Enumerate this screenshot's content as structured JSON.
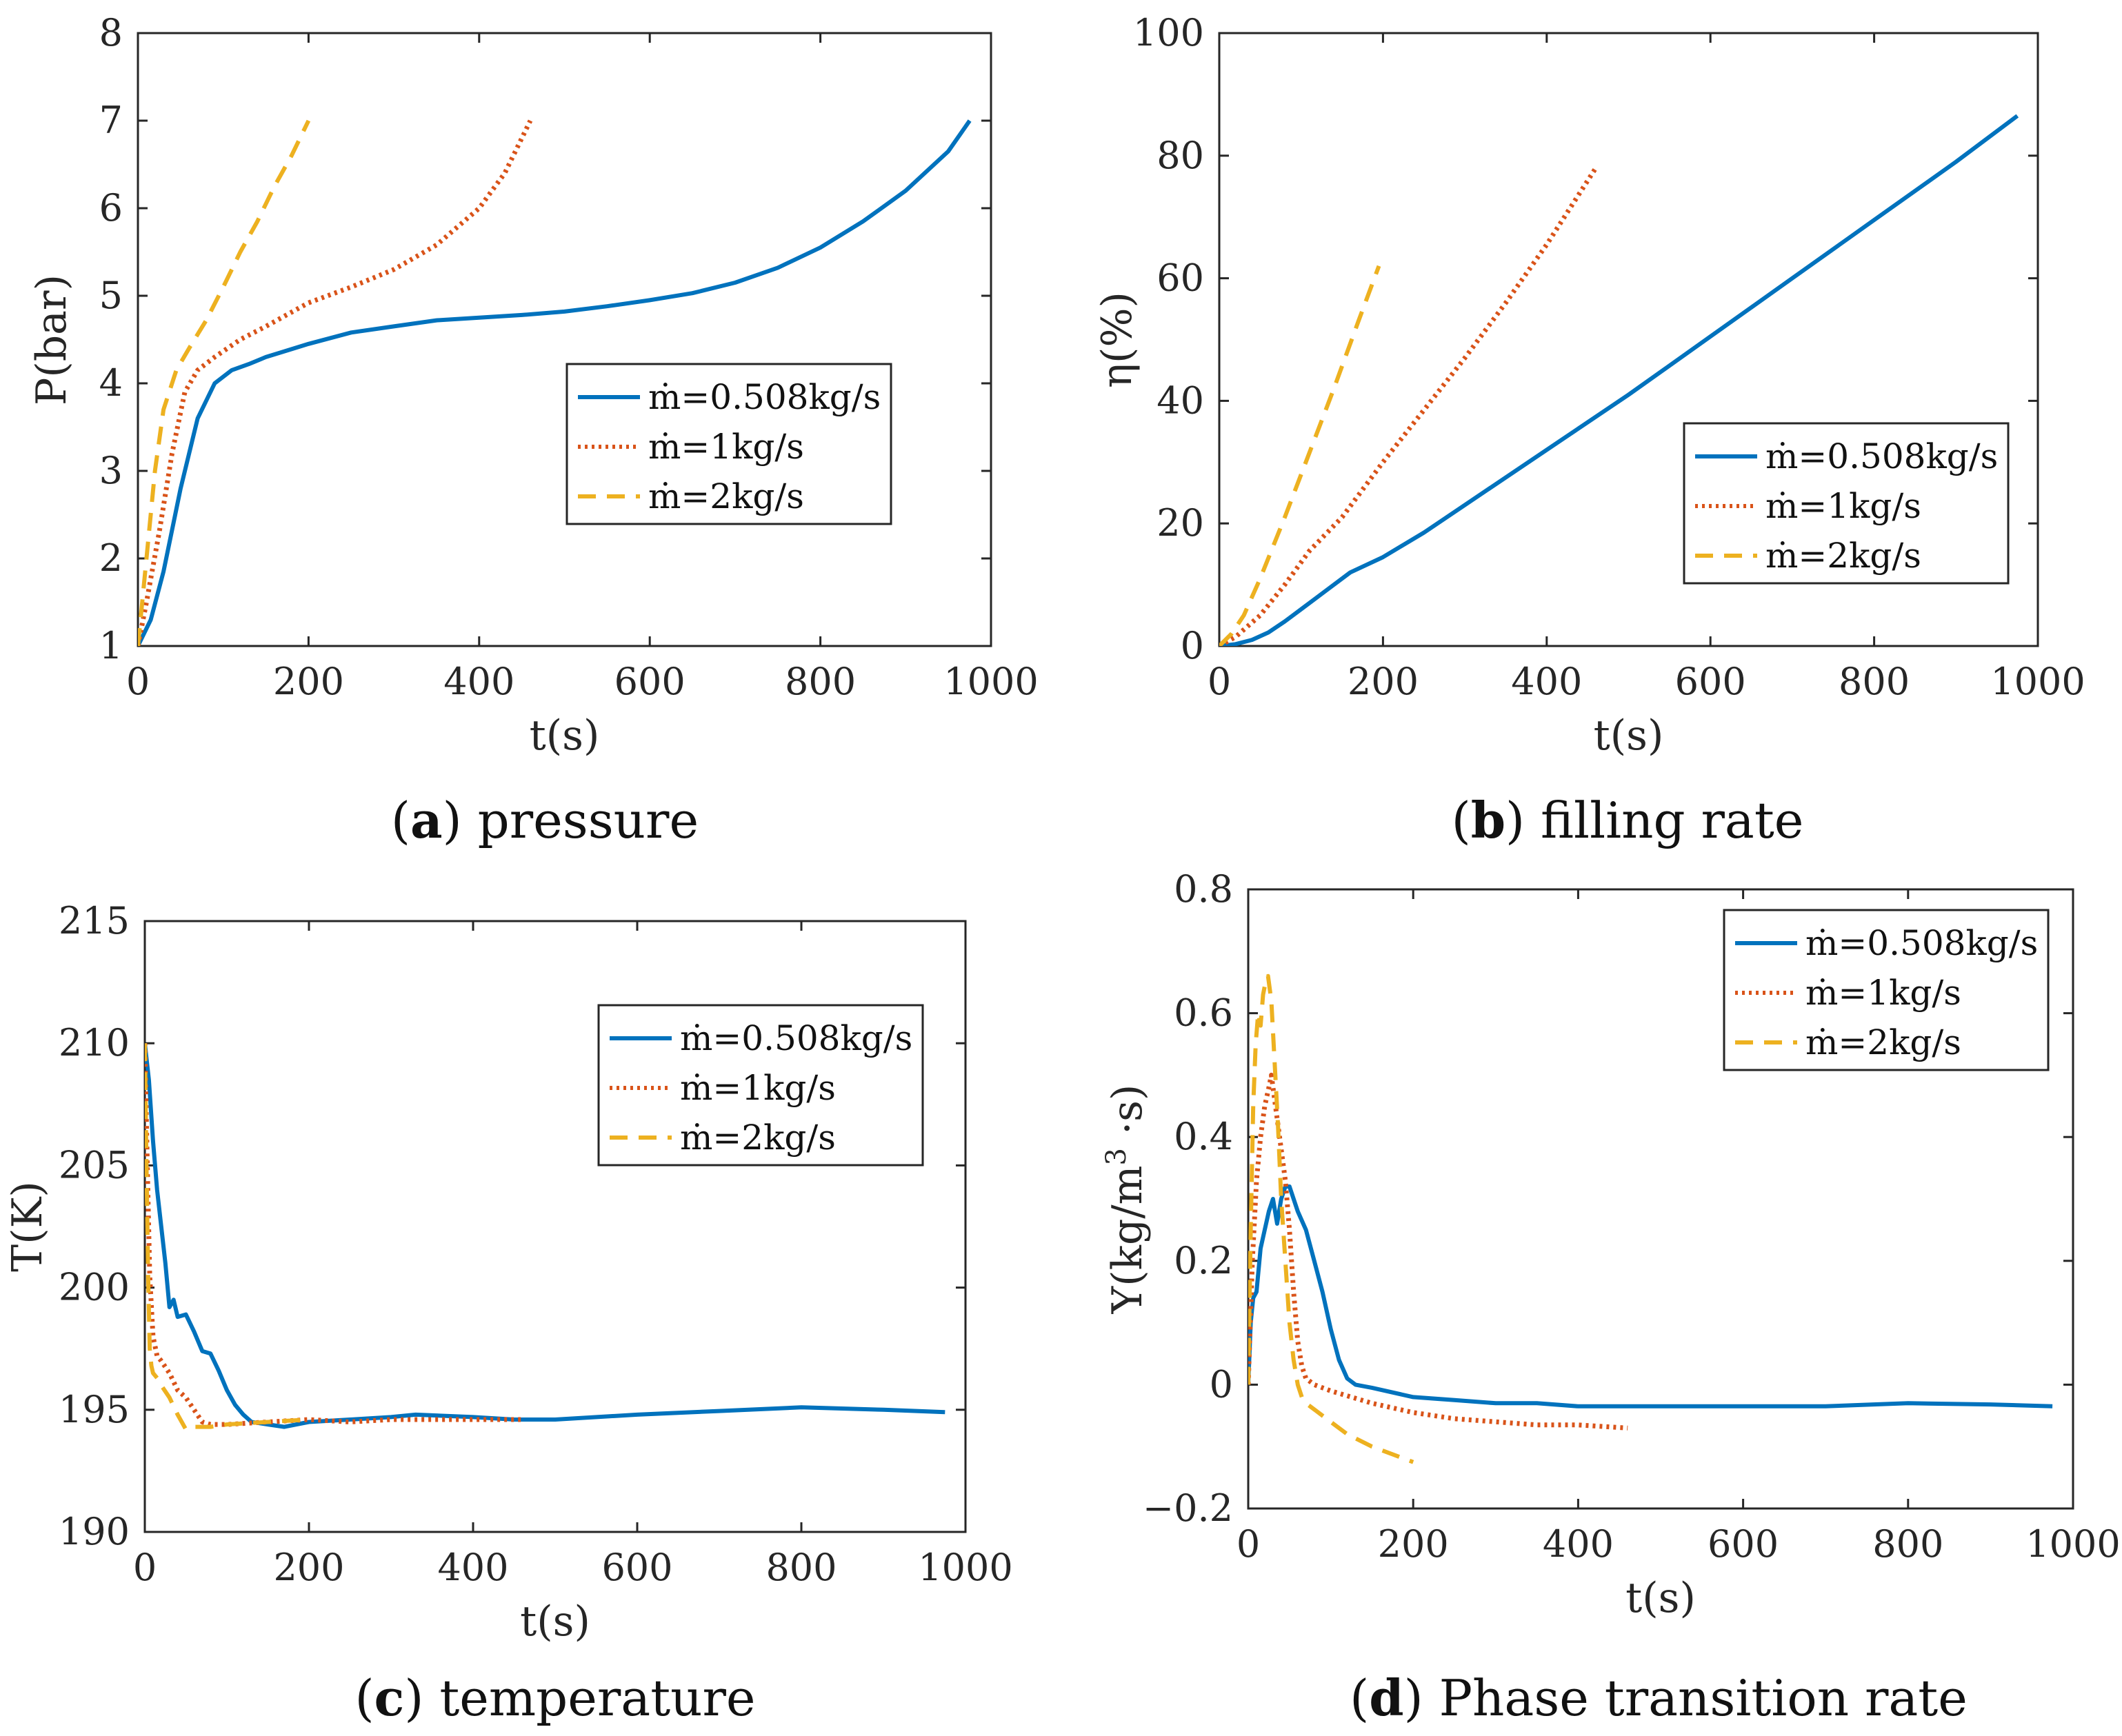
{
  "colors": {
    "s1": "#0072BD",
    "s2": "#D95319",
    "s3": "#EDB120"
  },
  "legend_entries": [
    "ṁ=0.508kg/s",
    "ṁ=1kg/s",
    "ṁ=2kg/s"
  ],
  "chart_data": [
    {
      "id": "a",
      "type": "line",
      "caption_letter": "a",
      "caption_text": " pressure",
      "xlabel": "t(s)",
      "ylabel": "P(bar)",
      "xlim": [
        0,
        1000
      ],
      "ylim": [
        1,
        8
      ],
      "xticks": [
        0,
        200,
        400,
        600,
        800,
        1000
      ],
      "yticks": [
        1,
        2,
        3,
        4,
        5,
        6,
        7,
        8
      ],
      "legend_position": "center-right",
      "series": [
        {
          "name": "ṁ=0.508kg/s",
          "color": "#0072BD",
          "style": "solid",
          "x": [
            0,
            15,
            30,
            50,
            70,
            90,
            110,
            130,
            150,
            200,
            250,
            300,
            350,
            400,
            450,
            500,
            550,
            600,
            650,
            700,
            750,
            800,
            850,
            900,
            950,
            975
          ],
          "y": [
            1.0,
            1.3,
            1.85,
            2.8,
            3.6,
            4.0,
            4.15,
            4.22,
            4.3,
            4.45,
            4.58,
            4.65,
            4.72,
            4.75,
            4.78,
            4.82,
            4.88,
            4.95,
            5.03,
            5.15,
            5.32,
            5.55,
            5.85,
            6.2,
            6.65,
            7.0
          ]
        },
        {
          "name": "ṁ=1kg/s",
          "color": "#D95319",
          "style": "dotted",
          "x": [
            0,
            10,
            25,
            40,
            55,
            70,
            90,
            120,
            150,
            200,
            250,
            300,
            350,
            400,
            430,
            460
          ],
          "y": [
            1.0,
            1.5,
            2.3,
            3.2,
            3.9,
            4.15,
            4.3,
            4.5,
            4.65,
            4.92,
            5.1,
            5.3,
            5.58,
            6.0,
            6.4,
            7.0
          ]
        },
        {
          "name": "ṁ=2kg/s",
          "color": "#EDB120",
          "style": "dashed",
          "x": [
            0,
            10,
            20,
            30,
            45,
            60,
            80,
            100,
            120,
            140,
            160,
            180,
            200
          ],
          "y": [
            1.0,
            2.0,
            3.0,
            3.7,
            4.15,
            4.4,
            4.72,
            5.1,
            5.5,
            5.85,
            6.25,
            6.6,
            7.0
          ]
        }
      ]
    },
    {
      "id": "b",
      "type": "line",
      "caption_letter": "b",
      "caption_text": " filling rate",
      "xlabel": "t(s)",
      "ylabel": "η(%)",
      "xlim": [
        0,
        1000
      ],
      "ylim": [
        0,
        100
      ],
      "xticks": [
        0,
        200,
        400,
        600,
        800,
        1000
      ],
      "yticks": [
        0,
        20,
        40,
        60,
        80,
        100
      ],
      "legend_position": "lower-right",
      "series": [
        {
          "name": "ṁ=0.508kg/s",
          "color": "#0072BD",
          "style": "solid",
          "x": [
            0,
            20,
            40,
            60,
            80,
            100,
            130,
            160,
            200,
            250,
            300,
            400,
            500,
            600,
            700,
            800,
            900,
            975
          ],
          "y": [
            0,
            0.3,
            1.0,
            2.2,
            4.0,
            6.0,
            9.0,
            12.0,
            14.5,
            18.5,
            23.0,
            32.0,
            41.0,
            50.5,
            60.0,
            69.5,
            79.0,
            86.5
          ]
        },
        {
          "name": "ṁ=1kg/s",
          "color": "#D95319",
          "style": "dotted",
          "x": [
            0,
            20,
            50,
            80,
            110,
            150,
            200,
            250,
            300,
            350,
            400,
            460
          ],
          "y": [
            0,
            1.5,
            5.0,
            10.0,
            15.5,
            21.0,
            30.0,
            38.5,
            47.0,
            56.0,
            65.5,
            78.0
          ]
        },
        {
          "name": "ṁ=2kg/s",
          "color": "#EDB120",
          "style": "dashed",
          "x": [
            0,
            15,
            30,
            50,
            80,
            110,
            140,
            170,
            195
          ],
          "y": [
            0,
            2.0,
            5.0,
            11.0,
            21.0,
            31.5,
            42.0,
            53.0,
            62.0
          ]
        }
      ]
    },
    {
      "id": "c",
      "type": "line",
      "caption_letter": "c",
      "caption_text": " temperature",
      "xlabel": "t(s)",
      "ylabel": "T(K)",
      "xlim": [
        0,
        1000
      ],
      "ylim": [
        190,
        215
      ],
      "xticks": [
        0,
        200,
        400,
        600,
        800,
        1000
      ],
      "yticks": [
        190,
        195,
        200,
        205,
        210,
        215
      ],
      "legend_position": "upper-right",
      "series": [
        {
          "name": "ṁ=0.508kg/s",
          "color": "#0072BD",
          "style": "solid",
          "x": [
            0,
            5,
            10,
            15,
            20,
            25,
            30,
            35,
            40,
            50,
            60,
            70,
            80,
            90,
            100,
            110,
            120,
            130,
            150,
            170,
            200,
            250,
            300,
            330,
            400,
            450,
            500,
            600,
            700,
            800,
            900,
            975
          ],
          "y": [
            210,
            208.5,
            206.0,
            204.0,
            202.5,
            201.0,
            199.2,
            199.5,
            198.8,
            198.9,
            198.2,
            197.4,
            197.3,
            196.6,
            195.8,
            195.2,
            194.8,
            194.5,
            194.4,
            194.3,
            194.5,
            194.6,
            194.7,
            194.8,
            194.7,
            194.6,
            194.6,
            194.8,
            194.95,
            195.1,
            195.0,
            194.9
          ]
        },
        {
          "name": "ṁ=1kg/s",
          "color": "#D95319",
          "style": "dotted",
          "x": [
            0,
            3,
            6,
            10,
            15,
            20,
            30,
            40,
            50,
            60,
            70,
            80,
            100,
            150,
            200,
            250,
            300,
            350,
            400,
            460
          ],
          "y": [
            210,
            205.0,
            200.5,
            198.0,
            197.2,
            197.0,
            196.5,
            195.8,
            195.5,
            195.0,
            194.5,
            194.4,
            194.4,
            194.5,
            194.6,
            194.5,
            194.6,
            194.6,
            194.6,
            194.6
          ]
        },
        {
          "name": "ṁ=2kg/s",
          "color": "#EDB120",
          "style": "dashed",
          "x": [
            0,
            2,
            4,
            6,
            8,
            10,
            15,
            20,
            30,
            40,
            50,
            60,
            80,
            100,
            150,
            200
          ],
          "y": [
            210,
            205.0,
            200.5,
            197.5,
            196.8,
            196.5,
            196.3,
            196.0,
            195.5,
            194.8,
            194.2,
            194.3,
            194.3,
            194.4,
            194.5,
            194.6
          ]
        }
      ]
    },
    {
      "id": "d",
      "type": "line",
      "caption_letter": "d",
      "caption_text": " Phase transition rate",
      "xlabel": "t(s)",
      "ylabel": "Y(kg/m³·s)",
      "ylabel_main": "Y(kg/m",
      "ylabel_sup": "3",
      "ylabel_end": " ·s)",
      "xlim": [
        0,
        1000
      ],
      "ylim": [
        -0.2,
        0.8
      ],
      "xticks": [
        0,
        200,
        400,
        600,
        800,
        1000
      ],
      "yticks": [
        -0.2,
        0,
        0.2,
        0.4,
        0.6,
        0.8
      ],
      "ytick_labels": [
        "−0.2",
        "0",
        "0.2",
        "0.4",
        "0.6",
        "0.8"
      ],
      "legend_position": "upper-right",
      "series": [
        {
          "name": "ṁ=0.508kg/s",
          "color": "#0072BD",
          "style": "solid",
          "x": [
            0,
            3,
            6,
            10,
            15,
            20,
            25,
            30,
            35,
            40,
            45,
            50,
            55,
            60,
            70,
            80,
            90,
            100,
            110,
            120,
            130,
            150,
            200,
            250,
            300,
            350,
            400,
            500,
            600,
            700,
            800,
            900,
            975
          ],
          "y": [
            0.0,
            0.1,
            0.14,
            0.15,
            0.22,
            0.25,
            0.28,
            0.3,
            0.26,
            0.3,
            0.32,
            0.32,
            0.3,
            0.28,
            0.25,
            0.2,
            0.15,
            0.09,
            0.04,
            0.01,
            0.0,
            -0.005,
            -0.02,
            -0.025,
            -0.03,
            -0.03,
            -0.035,
            -0.035,
            -0.035,
            -0.035,
            -0.03,
            -0.032,
            -0.035
          ]
        },
        {
          "name": "ṁ=1kg/s",
          "color": "#D95319",
          "style": "dotted",
          "x": [
            0,
            5,
            10,
            15,
            20,
            25,
            28,
            32,
            36,
            40,
            45,
            50,
            55,
            60,
            65,
            70,
            80,
            100,
            150,
            200,
            250,
            300,
            350,
            400,
            460
          ],
          "y": [
            0.0,
            0.2,
            0.33,
            0.4,
            0.45,
            0.48,
            0.5,
            0.46,
            0.42,
            0.38,
            0.33,
            0.25,
            0.15,
            0.07,
            0.03,
            0.01,
            0.0,
            -0.01,
            -0.03,
            -0.045,
            -0.055,
            -0.06,
            -0.065,
            -0.065,
            -0.07
          ]
        },
        {
          "name": "ṁ=2kg/s",
          "color": "#EDB120",
          "style": "dashed",
          "x": [
            0,
            3,
            6,
            9,
            12,
            15,
            18,
            21,
            24,
            28,
            32,
            36,
            40,
            45,
            50,
            55,
            60,
            65,
            70,
            80,
            100,
            120,
            150,
            180,
            200
          ],
          "y": [
            0.0,
            0.25,
            0.45,
            0.55,
            0.6,
            0.58,
            0.63,
            0.65,
            0.66,
            0.62,
            0.52,
            0.42,
            0.3,
            0.2,
            0.1,
            0.04,
            0.0,
            -0.02,
            -0.03,
            -0.04,
            -0.06,
            -0.08,
            -0.1,
            -0.115,
            -0.125
          ]
        }
      ]
    }
  ]
}
